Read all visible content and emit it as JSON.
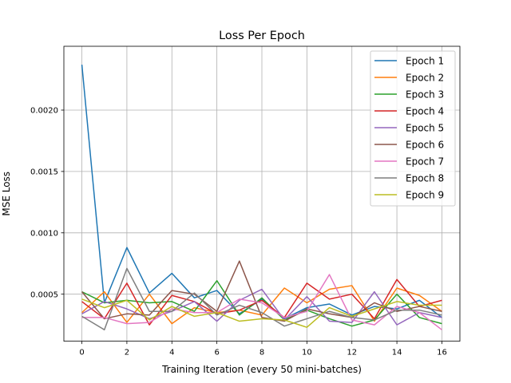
{
  "chart_data": {
    "type": "line",
    "title": "Loss Per Epoch",
    "xlabel": "Training Iteration (every 50 mini-batches)",
    "ylabel": "MSE Loss",
    "xlim": [
      -0.8,
      16.8
    ],
    "ylim": [
      0.000117,
      0.00252
    ],
    "xticks": [
      0,
      2,
      4,
      6,
      8,
      10,
      12,
      14,
      16
    ],
    "xtick_labels": [
      "0",
      "2",
      "4",
      "6",
      "8",
      "10",
      "12",
      "14",
      "16"
    ],
    "yticks": [
      0.0005,
      0.001,
      0.0015,
      0.002
    ],
    "ytick_labels": [
      "0.0005",
      "0.0010",
      "0.0015",
      "0.0020"
    ],
    "grid": true,
    "legend_position": "upper right",
    "x": [
      0,
      1,
      2,
      3,
      4,
      5,
      6,
      7,
      8,
      9,
      10,
      11,
      12,
      13,
      14,
      15,
      16
    ],
    "series": [
      {
        "name": "Epoch 1",
        "color": "#1f77b4",
        "values": [
          0.00237,
          0.00043,
          0.00088,
          0.00051,
          0.00067,
          0.00047,
          0.00053,
          0.00034,
          0.00046,
          0.0003,
          0.00039,
          0.00042,
          0.00033,
          0.0004,
          0.00038,
          0.00045,
          0.00031
        ]
      },
      {
        "name": "Epoch 2",
        "color": "#ff7f0e",
        "values": [
          0.00035,
          0.00052,
          0.00027,
          0.0005,
          0.00026,
          0.00039,
          0.00035,
          0.00037,
          0.00033,
          0.00055,
          0.00043,
          0.00054,
          0.00057,
          0.00028,
          0.00055,
          0.00049,
          0.00036
        ]
      },
      {
        "name": "Epoch 3",
        "color": "#2ca02c",
        "values": [
          0.00052,
          0.00043,
          0.00045,
          0.00043,
          0.00044,
          0.00036,
          0.00061,
          0.00033,
          0.00047,
          0.00029,
          0.00037,
          0.0003,
          0.00024,
          0.00029,
          0.0005,
          0.00031,
          0.00026
        ]
      },
      {
        "name": "Epoch 4",
        "color": "#d62728",
        "values": [
          0.00044,
          0.0003,
          0.00059,
          0.00025,
          0.00049,
          0.00044,
          0.00034,
          0.00037,
          0.00045,
          0.00031,
          0.00059,
          0.00046,
          0.0005,
          0.0003,
          0.00062,
          0.0004,
          0.00045
        ]
      },
      {
        "name": "Epoch 5",
        "color": "#9467bd",
        "values": [
          0.00034,
          0.00044,
          0.00038,
          0.0003,
          0.00036,
          0.00044,
          0.00028,
          0.00045,
          0.00054,
          0.00029,
          0.00048,
          0.00028,
          0.00027,
          0.00052,
          0.00025,
          0.00035,
          0.00031
        ]
      },
      {
        "name": "Epoch 6",
        "color": "#8c564b",
        "values": [
          0.00052,
          0.0003,
          0.00034,
          0.00033,
          0.00053,
          0.0005,
          0.00036,
          0.00077,
          0.00031,
          0.00028,
          0.00038,
          0.00034,
          0.00031,
          0.00043,
          0.00036,
          0.0004,
          0.00036
        ]
      },
      {
        "name": "Epoch 7",
        "color": "#e377c2",
        "values": [
          0.00031,
          0.00031,
          0.00026,
          0.00027,
          0.00038,
          0.00035,
          0.00035,
          0.00046,
          0.00043,
          0.00031,
          0.00036,
          0.00066,
          0.00029,
          0.00025,
          0.0004,
          0.00035,
          0.00021
        ]
      },
      {
        "name": "Epoch 8",
        "color": "#7f7f7f",
        "values": [
          0.00032,
          0.00021,
          0.00071,
          0.00036,
          0.00036,
          0.00051,
          0.00033,
          0.00041,
          0.00035,
          0.00024,
          0.0003,
          0.00036,
          0.00031,
          0.00029,
          0.00037,
          0.00037,
          0.00033
        ]
      },
      {
        "name": "Epoch 9",
        "color": "#bcbd22",
        "values": [
          0.00046,
          0.00039,
          0.00045,
          0.00029,
          0.0004,
          0.00032,
          0.00035,
          0.00028,
          0.0003,
          0.00029,
          0.00023,
          0.00039,
          0.00032,
          0.00038,
          0.00044,
          0.00041,
          0.00041
        ]
      }
    ]
  }
}
